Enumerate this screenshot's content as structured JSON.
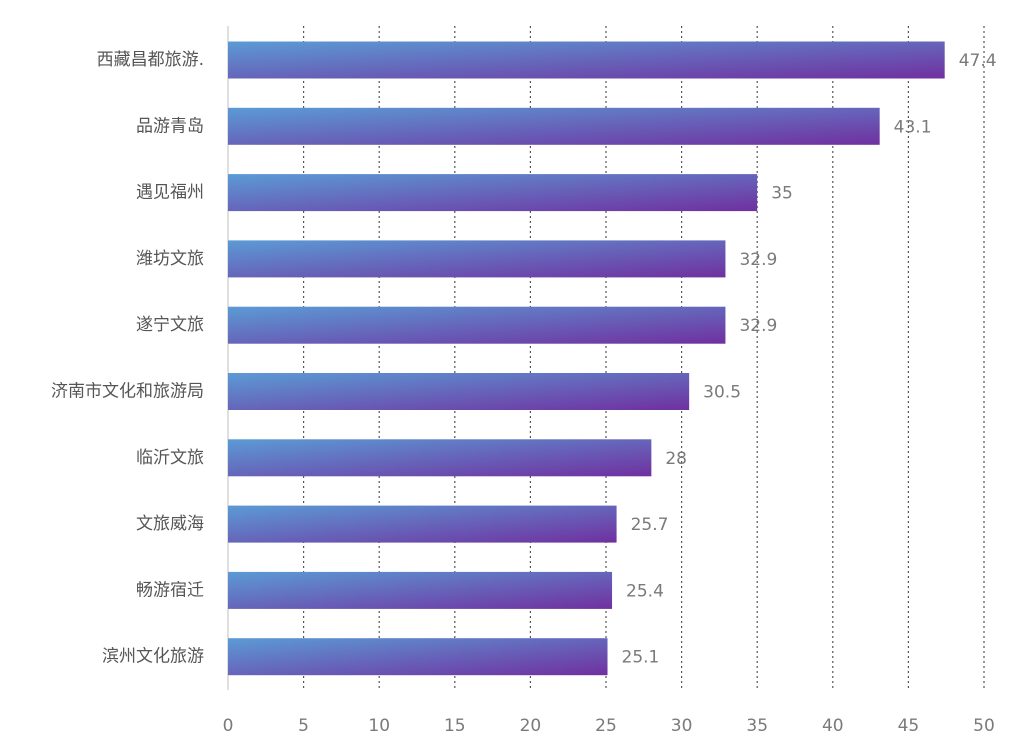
{
  "chart_data": {
    "type": "bar",
    "orientation": "horizontal",
    "categories": [
      "西藏昌都旅游.",
      "品游青岛",
      "遇见福州",
      "潍坊文旅",
      "遂宁文旅",
      "济南市文化和旅游局",
      "临沂文旅",
      "文旅威海",
      "畅游宿迁",
      "滨州文化旅游"
    ],
    "values": [
      47.4,
      43.1,
      35,
      32.9,
      32.9,
      30.5,
      28,
      25.7,
      25.4,
      25.1
    ],
    "value_labels": [
      "47.4",
      "43.1",
      "35",
      "32.9",
      "32.9",
      "30.5",
      "28",
      "25.7",
      "25.4",
      "25.1"
    ],
    "xlim": [
      0,
      50
    ],
    "x_ticks": [
      0,
      5,
      10,
      15,
      20,
      25,
      30,
      35,
      40,
      45,
      50
    ],
    "grid": "vertical dotted",
    "bar_gradient": {
      "start": "#5b9bd5",
      "end": "#7030a0"
    },
    "colors": {
      "grid": "#555555",
      "axis": "#bfbfbf",
      "category_text": "#555555",
      "tick_text": "#7a7a7a",
      "value_text": "#7a7a7a"
    }
  }
}
